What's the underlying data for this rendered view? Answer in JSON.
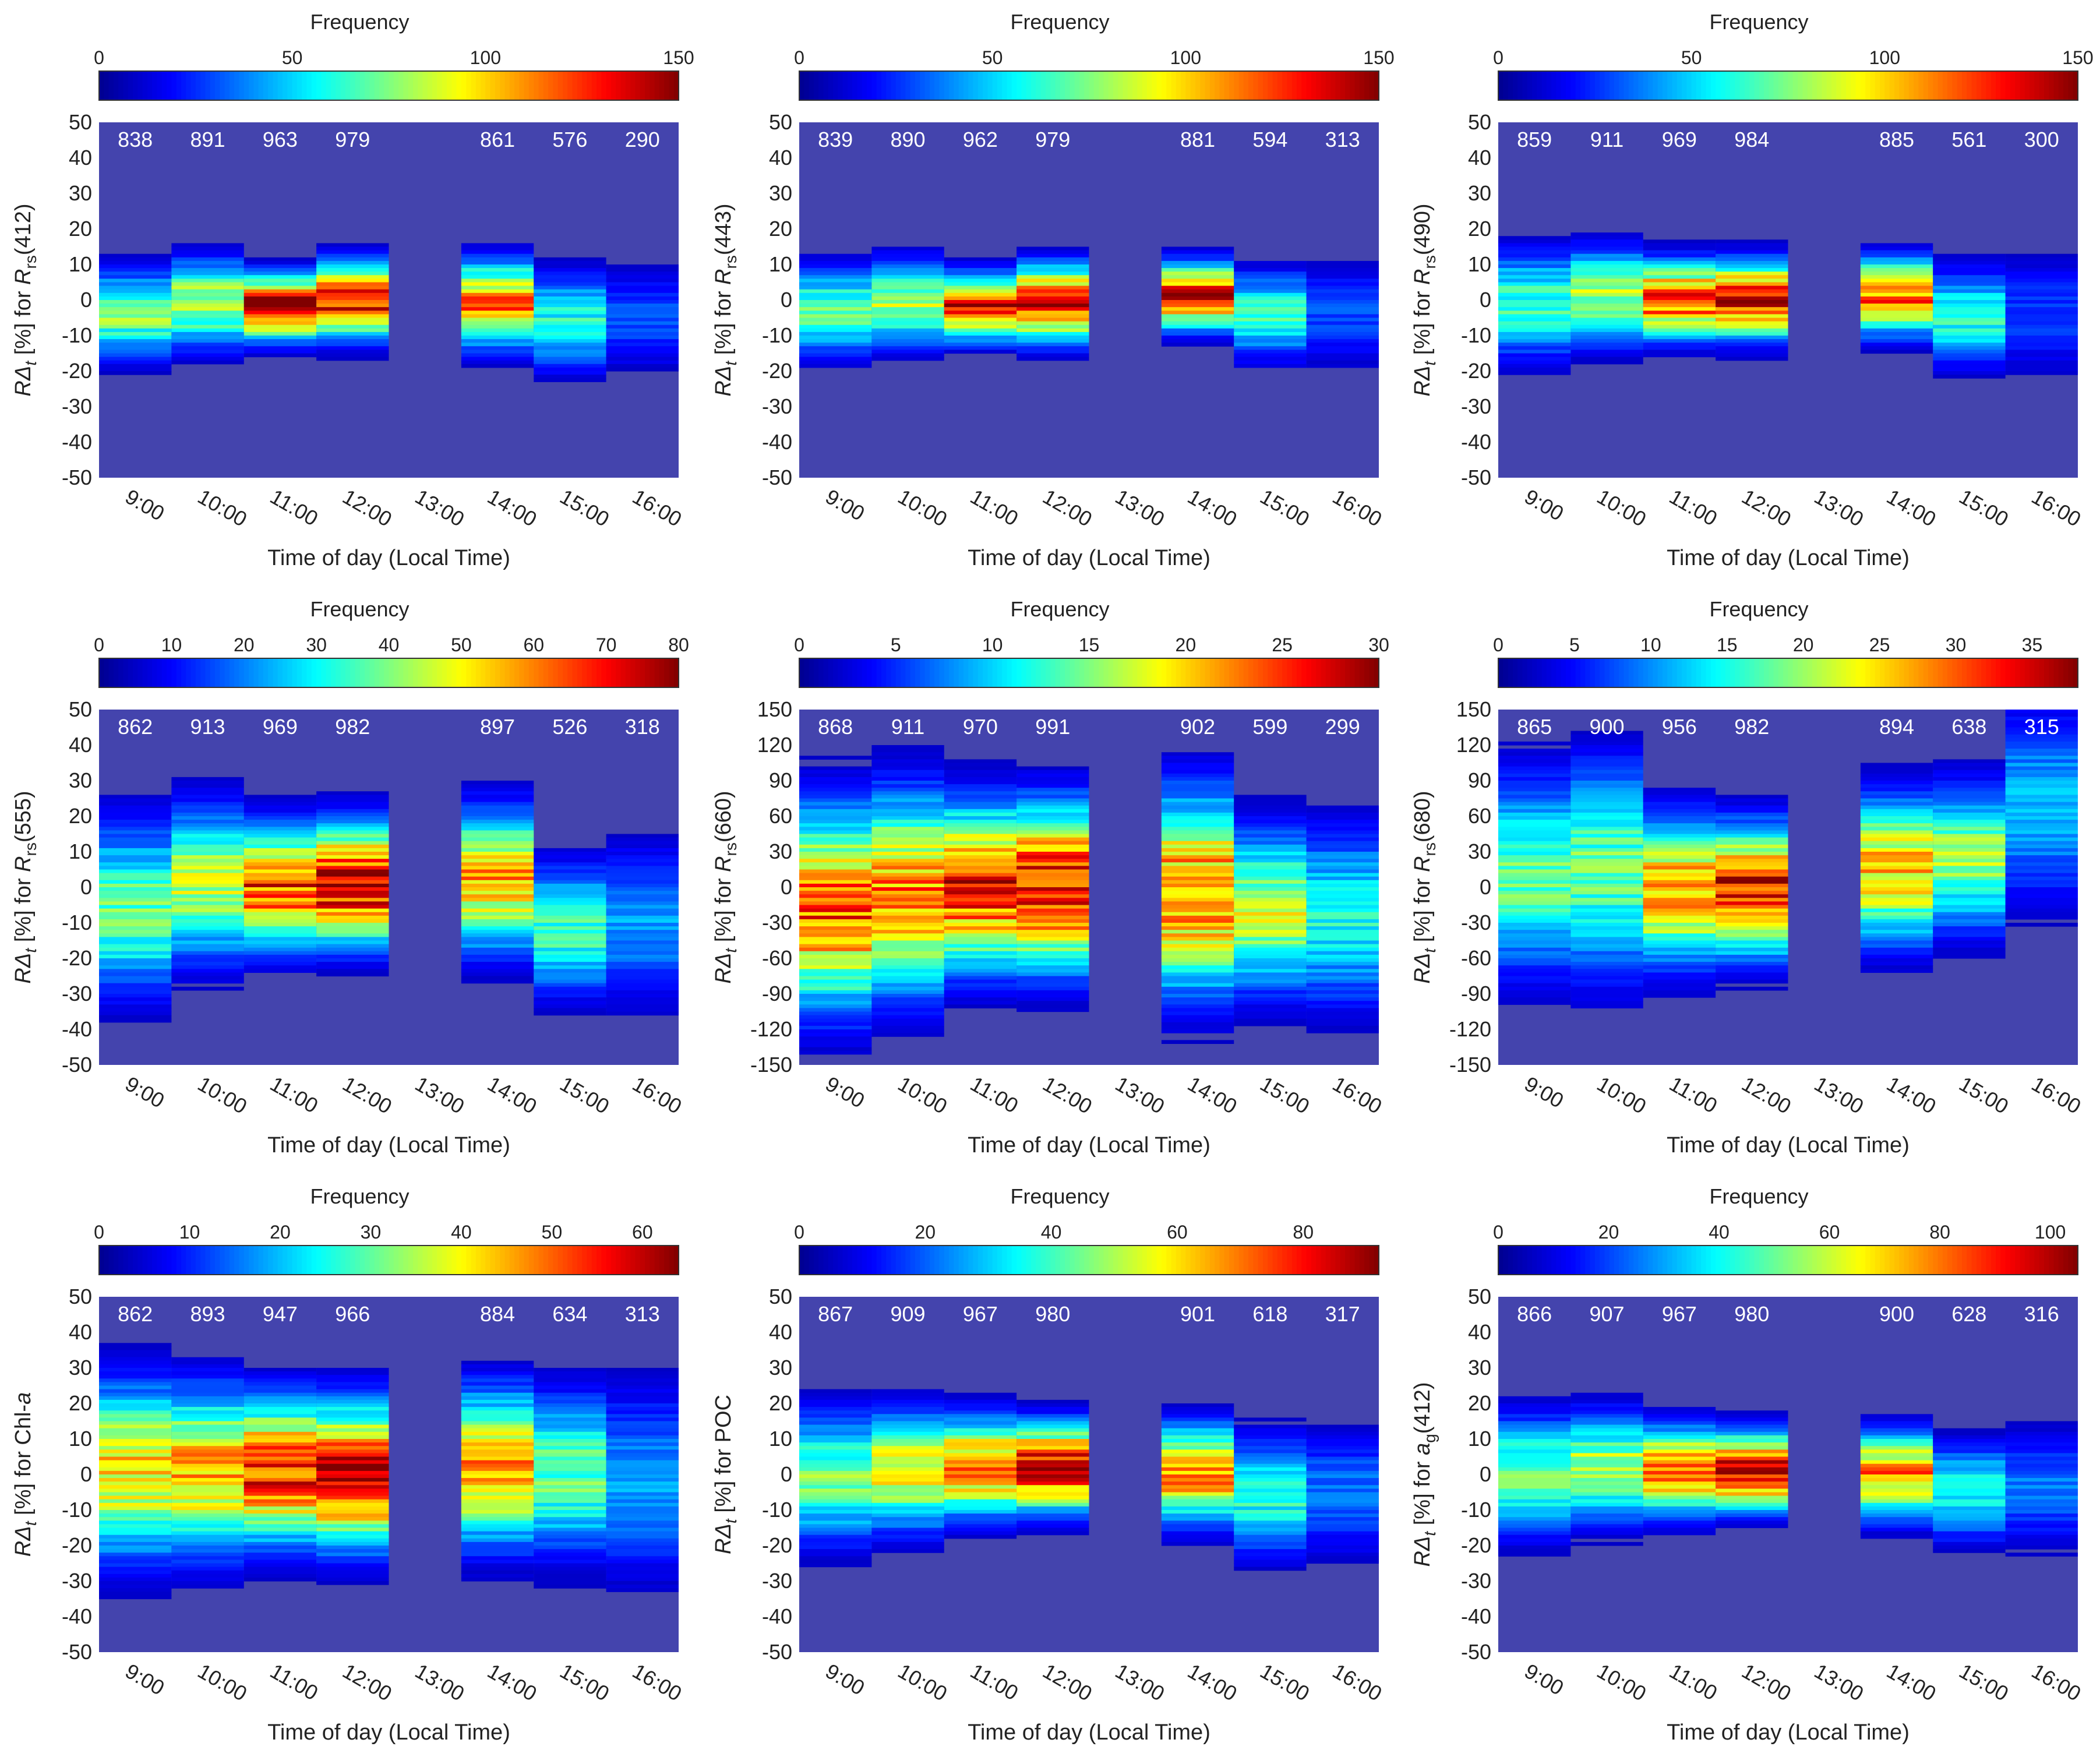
{
  "figure": {
    "colorbar_label": "Frequency",
    "x_categories": [
      "9:00",
      "10:00",
      "11:00",
      "12:00",
      "13:00",
      "14:00",
      "15:00",
      "16:00"
    ],
    "x_axis_label": "Time of day (Local Time)"
  },
  "colors": {
    "plot_background": "#4444ad",
    "count_text": "#ffffff",
    "axis_text": "#222222",
    "colormap": [
      "#00008f",
      "#0000ff",
      "#0080ff",
      "#00ffff",
      "#80ff80",
      "#ffff00",
      "#ff8000",
      "#ff0000",
      "#800000"
    ]
  },
  "chart_data": [
    {
      "type": "heatmap",
      "panel": "a",
      "ylabel": "RΔt [%] for Rrs(412)",
      "ylabel_parts": {
        "pre": "RΔ",
        "sub1": "t",
        "mid": " [%] for ",
        "it": "R",
        "sub2": "rs",
        "post": "(412)"
      },
      "xlabel": "Time of day (Local Time)",
      "categories": [
        "9:00",
        "10:00",
        "11:00",
        "12:00",
        "13:00",
        "14:00",
        "15:00",
        "16:00"
      ],
      "ylim": [
        -50,
        50
      ],
      "yticks": [
        -50,
        -40,
        -30,
        -20,
        -10,
        0,
        10,
        20,
        30,
        40,
        50
      ],
      "colorbar": {
        "label": "Frequency",
        "range": [
          0,
          150
        ],
        "ticks": [
          0,
          50,
          100,
          150
        ]
      },
      "counts": [
        "838",
        "891",
        "963",
        "979",
        "",
        "861",
        "576",
        "290"
      ],
      "bins": [
        {
          "center": -4,
          "spread": 8,
          "peak": 75
        },
        {
          "center": -1,
          "spread": 8,
          "peak": 85
        },
        {
          "center": -2,
          "spread": 6,
          "peak": 140
        },
        {
          "center": 0,
          "spread": 7,
          "peak": 130
        },
        null,
        {
          "center": -1,
          "spread": 8,
          "peak": 110
        },
        {
          "center": -6,
          "spread": 9,
          "peak": 60
        },
        {
          "center": -5,
          "spread": 10,
          "peak": 30
        }
      ]
    },
    {
      "type": "heatmap",
      "panel": "b",
      "ylabel": "RΔt [%] for Rrs(443)",
      "ylabel_parts": {
        "pre": "RΔ",
        "sub1": "t",
        "mid": " [%] for ",
        "it": "R",
        "sub2": "rs",
        "post": "(443)"
      },
      "xlabel": "Time of day (Local Time)",
      "categories": [
        "9:00",
        "10:00",
        "11:00",
        "12:00",
        "13:00",
        "14:00",
        "15:00",
        "16:00"
      ],
      "ylim": [
        -50,
        50
      ],
      "yticks": [
        -50,
        -40,
        -30,
        -20,
        -10,
        0,
        10,
        20,
        30,
        40,
        50
      ],
      "colorbar": {
        "label": "Frequency",
        "range": [
          0,
          150
        ],
        "ticks": [
          0,
          50,
          100,
          150
        ]
      },
      "counts": [
        "839",
        "890",
        "962",
        "979",
        "",
        "881",
        "594",
        "313"
      ],
      "bins": [
        {
          "center": -3,
          "spread": 8,
          "peak": 70
        },
        {
          "center": -1,
          "spread": 8,
          "peak": 80
        },
        {
          "center": -2,
          "spread": 6,
          "peak": 130
        },
        {
          "center": -1,
          "spread": 7,
          "peak": 135
        },
        null,
        {
          "center": 1,
          "spread": 6,
          "peak": 130
        },
        {
          "center": -4,
          "spread": 8,
          "peak": 65
        },
        {
          "center": -4,
          "spread": 10,
          "peak": 30
        }
      ]
    },
    {
      "type": "heatmap",
      "panel": "c",
      "ylabel": "RΔt [%] for Rrs(490)",
      "ylabel_parts": {
        "pre": "RΔ",
        "sub1": "t",
        "mid": " [%] for ",
        "it": "R",
        "sub2": "rs",
        "post": "(490)"
      },
      "xlabel": "Time of day (Local Time)",
      "categories": [
        "9:00",
        "10:00",
        "11:00",
        "12:00",
        "13:00",
        "14:00",
        "15:00",
        "16:00"
      ],
      "ylim": [
        -50,
        50
      ],
      "yticks": [
        -50,
        -40,
        -30,
        -20,
        -10,
        0,
        10,
        20,
        30,
        40,
        50
      ],
      "colorbar": {
        "label": "Frequency",
        "range": [
          0,
          150
        ],
        "ticks": [
          0,
          50,
          100,
          150
        ]
      },
      "counts": [
        "859",
        "911",
        "969",
        "984",
        "",
        "885",
        "561",
        "300"
      ],
      "bins": [
        {
          "center": -1,
          "spread": 10,
          "peak": 65
        },
        {
          "center": 1,
          "spread": 9,
          "peak": 80
        },
        {
          "center": 0,
          "spread": 7,
          "peak": 125
        },
        {
          "center": 0,
          "spread": 7,
          "peak": 135
        },
        null,
        {
          "center": 1,
          "spread": 7,
          "peak": 115
        },
        {
          "center": -5,
          "spread": 9,
          "peak": 60
        },
        {
          "center": -4,
          "spread": 11,
          "peak": 28
        }
      ]
    },
    {
      "type": "heatmap",
      "panel": "d",
      "ylabel": "RΔt [%] for Rrs(555)",
      "ylabel_parts": {
        "pre": "RΔ",
        "sub1": "t",
        "mid": " [%] for ",
        "it": "R",
        "sub2": "rs",
        "post": "(555)"
      },
      "xlabel": "Time of day (Local Time)",
      "categories": [
        "9:00",
        "10:00",
        "11:00",
        "12:00",
        "13:00",
        "14:00",
        "15:00",
        "16:00"
      ],
      "ylim": [
        -50,
        50
      ],
      "yticks": [
        -50,
        -40,
        -30,
        -20,
        -10,
        0,
        10,
        20,
        30,
        40,
        50
      ],
      "colorbar": {
        "label": "Frequency",
        "range": [
          0,
          80
        ],
        "ticks": [
          0,
          10,
          20,
          30,
          40,
          50,
          60,
          70,
          80
        ]
      },
      "counts": [
        "862",
        "913",
        "969",
        "982",
        "",
        "897",
        "526",
        "318"
      ],
      "bins": [
        {
          "center": -6,
          "spread": 16,
          "peak": 38
        },
        {
          "center": 1,
          "spread": 14,
          "peak": 45
        },
        {
          "center": 0,
          "spread": 11,
          "peak": 65
        },
        {
          "center": 1,
          "spread": 11,
          "peak": 75
        },
        null,
        {
          "center": 2,
          "spread": 13,
          "peak": 55
        },
        {
          "center": -12,
          "spread": 12,
          "peak": 35
        },
        {
          "center": -10,
          "spread": 15,
          "peak": 22
        }
      ]
    },
    {
      "type": "heatmap",
      "panel": "e",
      "ylabel": "RΔt [%] for Rrs(660)",
      "ylabel_parts": {
        "pre": "RΔ",
        "sub1": "t",
        "mid": " [%] for ",
        "it": "R",
        "sub2": "rs",
        "post": "(660)"
      },
      "xlabel": "Time of day (Local Time)",
      "categories": [
        "9:00",
        "10:00",
        "11:00",
        "12:00",
        "13:00",
        "14:00",
        "15:00",
        "16:00"
      ],
      "ylim": [
        -150,
        150
      ],
      "yticks": [
        -150,
        -120,
        -90,
        -60,
        -30,
        0,
        30,
        60,
        90,
        120,
        150
      ],
      "colorbar": {
        "label": "Frequency",
        "range": [
          0,
          30
        ],
        "ticks": [
          0,
          5,
          10,
          15,
          20,
          25,
          30
        ]
      },
      "counts": [
        "868",
        "911",
        "970",
        "991",
        "",
        "902",
        "599",
        "299"
      ],
      "bins": [
        {
          "center": -18,
          "spread": 55,
          "peak": 24
        },
        {
          "center": -5,
          "spread": 55,
          "peak": 22
        },
        {
          "center": 0,
          "spread": 45,
          "peak": 26
        },
        {
          "center": 0,
          "spread": 45,
          "peak": 27
        },
        null,
        {
          "center": -5,
          "spread": 55,
          "peak": 23
        },
        {
          "center": -20,
          "spread": 45,
          "peak": 17
        },
        {
          "center": -25,
          "spread": 50,
          "peak": 12
        }
      ]
    },
    {
      "type": "heatmap",
      "panel": "f",
      "ylabel": "RΔt [%] for Rrs(680)",
      "ylabel_parts": {
        "pre": "RΔ",
        "sub1": "t",
        "mid": " [%] for ",
        "it": "R",
        "sub2": "rs",
        "post": "(680)"
      },
      "xlabel": "Time of day (Local Time)",
      "categories": [
        "9:00",
        "10:00",
        "11:00",
        "12:00",
        "13:00",
        "14:00",
        "15:00",
        "16:00"
      ],
      "ylim": [
        -150,
        150
      ],
      "yticks": [
        -150,
        -120,
        -90,
        -60,
        -30,
        0,
        30,
        60,
        90,
        120,
        150
      ],
      "colorbar": {
        "label": "Frequency",
        "range": [
          0,
          38
        ],
        "ticks": [
          0,
          5,
          10,
          15,
          20,
          25,
          30,
          35
        ]
      },
      "counts": [
        "865",
        "900",
        "956",
        "982",
        "",
        "894",
        "638",
        "315"
      ],
      "bins": [
        {
          "center": 10,
          "spread": 55,
          "peak": 18
        },
        {
          "center": 15,
          "spread": 60,
          "peak": 18
        },
        {
          "center": -3,
          "spread": 40,
          "peak": 28
        },
        {
          "center": -3,
          "spread": 35,
          "peak": 34
        },
        null,
        {
          "center": 15,
          "spread": 40,
          "peak": 26
        },
        {
          "center": 25,
          "spread": 40,
          "peak": 20
        },
        {
          "center": 70,
          "spread": 55,
          "peak": 12
        }
      ]
    },
    {
      "type": "heatmap",
      "panel": "g",
      "ylabel": "RΔt [%] for Chl-a",
      "ylabel_parts": {
        "pre": "RΔ",
        "sub1": "t",
        "mid": " [%] for Chl-",
        "it": "a",
        "sub2": "",
        "post": ""
      },
      "xlabel": "Time of day (Local Time)",
      "categories": [
        "9:00",
        "10:00",
        "11:00",
        "12:00",
        "13:00",
        "14:00",
        "15:00",
        "16:00"
      ],
      "ylim": [
        -50,
        50
      ],
      "yticks": [
        -50,
        -40,
        -30,
        -20,
        -10,
        0,
        10,
        20,
        30,
        40,
        50
      ],
      "colorbar": {
        "label": "Frequency",
        "range": [
          0,
          64
        ],
        "ticks": [
          0,
          10,
          20,
          30,
          40,
          50,
          60
        ]
      },
      "counts": [
        "862",
        "893",
        "947",
        "966",
        "",
        "884",
        "634",
        "313"
      ],
      "bins": [
        {
          "center": 1,
          "spread": 16,
          "peak": 42
        },
        {
          "center": 1,
          "spread": 15,
          "peak": 45
        },
        {
          "center": 1,
          "spread": 13,
          "peak": 55
        },
        {
          "center": 0,
          "spread": 13,
          "peak": 60
        },
        null,
        {
          "center": 2,
          "spread": 14,
          "peak": 47
        },
        {
          "center": 0,
          "spread": 15,
          "peak": 30
        },
        {
          "center": -2,
          "spread": 18,
          "peak": 18
        }
      ]
    },
    {
      "type": "heatmap",
      "panel": "h",
      "ylabel": "RΔt [%] for POC",
      "ylabel_parts": {
        "pre": "RΔ",
        "sub1": "t",
        "mid": " [%] for POC",
        "it": "",
        "sub2": "",
        "post": ""
      },
      "xlabel": "Time of day (Local Time)",
      "categories": [
        "9:00",
        "10:00",
        "11:00",
        "12:00",
        "13:00",
        "14:00",
        "15:00",
        "16:00"
      ],
      "ylim": [
        -50,
        50
      ],
      "yticks": [
        -50,
        -40,
        -30,
        -20,
        -10,
        0,
        10,
        20,
        30,
        40,
        50
      ],
      "colorbar": {
        "label": "Frequency",
        "range": [
          0,
          92
        ],
        "ticks": [
          0,
          20,
          40,
          60,
          80
        ]
      },
      "counts": [
        "867",
        "909",
        "967",
        "980",
        "",
        "901",
        "618",
        "317"
      ],
      "bins": [
        {
          "center": -1,
          "spread": 12,
          "peak": 45
        },
        {
          "center": 1,
          "spread": 11,
          "peak": 55
        },
        {
          "center": 2,
          "spread": 9,
          "peak": 72
        },
        {
          "center": 2,
          "spread": 8,
          "peak": 85
        },
        null,
        {
          "center": 0,
          "spread": 9,
          "peak": 68
        },
        {
          "center": -6,
          "spread": 11,
          "peak": 38
        },
        {
          "center": -5,
          "spread": 12,
          "peak": 22
        }
      ]
    },
    {
      "type": "heatmap",
      "panel": "i",
      "ylabel": "RΔt [%] for ag(412)",
      "ylabel_parts": {
        "pre": "RΔ",
        "sub1": "t",
        "mid": " [%] for ",
        "it": "a",
        "sub2": "g",
        "post": "(412)"
      },
      "xlabel": "Time of day (Local Time)",
      "categories": [
        "9:00",
        "10:00",
        "11:00",
        "12:00",
        "13:00",
        "14:00",
        "15:00",
        "16:00"
      ],
      "ylim": [
        -50,
        50
      ],
      "yticks": [
        -50,
        -40,
        -30,
        -20,
        -10,
        0,
        10,
        20,
        30,
        40,
        50
      ],
      "colorbar": {
        "label": "Frequency",
        "range": [
          0,
          105
        ],
        "ticks": [
          0,
          20,
          40,
          60,
          80,
          100
        ]
      },
      "counts": [
        "866",
        "907",
        "967",
        "980",
        "",
        "900",
        "628",
        "316"
      ],
      "bins": [
        {
          "center": 0,
          "spread": 11,
          "peak": 50
        },
        {
          "center": 2,
          "spread": 10,
          "peak": 58
        },
        {
          "center": 1,
          "spread": 8,
          "peak": 80
        },
        {
          "center": 1,
          "spread": 7,
          "peak": 98
        },
        null,
        {
          "center": 0,
          "spread": 8,
          "peak": 75
        },
        {
          "center": -5,
          "spread": 9,
          "peak": 42
        },
        {
          "center": -4,
          "spread": 11,
          "peak": 25
        }
      ]
    }
  ]
}
